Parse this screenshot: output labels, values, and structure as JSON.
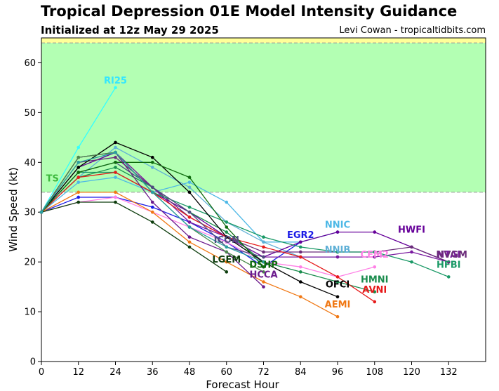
{
  "header": {
    "title": "Tropical Depression 01E Model Intensity Guidance",
    "subtitle": "Initialized at 12z May 29 2025",
    "credit": "Levi Cowan - tropicaltidbits.com"
  },
  "chart_data": {
    "type": "line",
    "title": "Tropical Depression 01E Model Intensity Guidance",
    "subtitle": "Initialized at 12z May 29 2025",
    "xlabel": "Forecast Hour",
    "ylabel": "Wind Speed (kt)",
    "xlim": [
      0,
      144
    ],
    "ylim": [
      0,
      65
    ],
    "xticks": [
      0,
      12,
      24,
      36,
      48,
      60,
      72,
      84,
      96,
      108,
      120,
      132
    ],
    "yticks": [
      0,
      10,
      20,
      30,
      40,
      50,
      60
    ],
    "bands": [
      {
        "label": "TS",
        "from": 34,
        "to": 64,
        "color": "#b3ffb3",
        "label_color": "#3cb83c"
      },
      {
        "label": "",
        "from": 64,
        "to": 65,
        "color": "#ffff99",
        "label_color": "#cccc00"
      }
    ],
    "series": [
      {
        "name": "RI25",
        "color": "#33ffff",
        "label_color": "#33e6ff",
        "label_at": [
          24,
          55
        ],
        "x": [
          0,
          12,
          24
        ],
        "y": [
          30,
          43,
          55
        ]
      },
      {
        "name": "NNIC",
        "color": "#4db8e6",
        "label_color": "#4db8e6",
        "label_at": [
          96,
          26
        ],
        "x": [
          0,
          12,
          24,
          36,
          48,
          60,
          72,
          84,
          96
        ],
        "y": [
          30,
          36,
          37,
          34,
          36,
          32,
          24,
          24,
          26
        ]
      },
      {
        "name": "NNIB",
        "color": "#5fb0d6",
        "label_color": "#5fb0d6",
        "label_at": [
          96,
          21
        ],
        "x": [
          0,
          12,
          24,
          36,
          48,
          60,
          72,
          84,
          96
        ],
        "y": [
          30,
          37,
          43,
          39,
          35,
          28,
          24,
          21,
          21
        ]
      },
      {
        "name": "EGR2",
        "color": "#1a1ae6",
        "label_color": "#1a1ae6",
        "label_at": [
          84,
          24
        ],
        "x": [
          0,
          12,
          24,
          36,
          48,
          60,
          72,
          84
        ],
        "y": [
          30,
          33,
          33,
          31,
          28,
          24,
          19,
          24
        ]
      },
      {
        "name": "HWFI",
        "color": "#660099",
        "label_color": "#660099",
        "label_at": [
          120,
          25
        ],
        "x": [
          0,
          12,
          24,
          36,
          48,
          60,
          72,
          84,
          96,
          108,
          120,
          132
        ],
        "y": [
          30,
          39,
          42,
          34,
          30,
          25,
          21,
          24,
          26,
          26,
          23,
          20
        ]
      },
      {
        "name": "CEM2",
        "color": "#ff80e6",
        "label_color": "#ff80e6",
        "label_at": [
          108,
          20
        ],
        "x": [
          0,
          12,
          24,
          36,
          48,
          60,
          72,
          84,
          96,
          108
        ],
        "y": [
          30,
          32,
          33,
          30,
          27,
          24,
          20,
          19,
          17,
          19
        ]
      },
      {
        "name": "NTAI",
        "color": "#7a1aa0",
        "label_color": "#7a1aa0",
        "label_at": [
          132,
          20
        ],
        "x": [
          0,
          12,
          24,
          36,
          48,
          60,
          72,
          84,
          96,
          108,
          120,
          132
        ],
        "y": [
          30,
          41,
          42,
          35,
          28,
          25,
          21,
          21,
          21,
          21,
          22,
          20
        ]
      },
      {
        "name": "NVGM",
        "color": "#6b2c7a",
        "label_color": "#6b2c7a",
        "label_at": [
          133,
          20
        ],
        "x": [
          0,
          12,
          24,
          36,
          48,
          60,
          72,
          84,
          96,
          108,
          120,
          132
        ],
        "y": [
          30,
          40,
          41,
          35,
          29,
          25,
          22,
          22,
          22,
          22,
          23,
          20
        ]
      },
      {
        "name": "HFBI",
        "color": "#1a9966",
        "label_color": "#1a9966",
        "label_at": [
          132,
          18
        ],
        "x": [
          0,
          12,
          24,
          36,
          48,
          60,
          72,
          84,
          96,
          108,
          120,
          132
        ],
        "y": [
          30,
          38,
          38,
          34,
          31,
          28,
          25,
          23,
          22,
          22,
          20,
          17
        ]
      },
      {
        "name": "HMNI",
        "color": "#1a8c4d",
        "label_color": "#1a8c4d",
        "label_at": [
          108,
          15
        ],
        "x": [
          0,
          12,
          24,
          36,
          48,
          60,
          72,
          84,
          96,
          108
        ],
        "y": [
          30,
          37,
          39,
          35,
          30,
          26,
          20,
          18,
          16,
          14
        ]
      },
      {
        "name": "AVNI",
        "color": "#e61a1a",
        "label_color": "#e61a1a",
        "label_at": [
          108,
          13
        ],
        "x": [
          0,
          12,
          24,
          36,
          48,
          60,
          72,
          84,
          96,
          108
        ],
        "y": [
          30,
          37,
          38,
          34,
          29,
          25,
          23,
          21,
          17,
          12
        ]
      },
      {
        "name": "OFCI",
        "color": "#000000",
        "label_color": "#000000",
        "label_at": [
          96,
          14
        ],
        "x": [
          0,
          12,
          24,
          36,
          48,
          60,
          72,
          84,
          96
        ],
        "y": [
          30,
          39,
          44,
          41,
          34,
          25,
          20,
          16,
          13
        ]
      },
      {
        "name": "AEMI",
        "color": "#f07814",
        "label_color": "#f07814",
        "label_at": [
          96,
          10
        ],
        "x": [
          0,
          12,
          24,
          36,
          48,
          60,
          72,
          84,
          96
        ],
        "y": [
          30,
          34,
          34,
          30,
          24,
          20,
          16,
          13,
          9
        ]
      },
      {
        "name": "ICON",
        "color": "#4d4d80",
        "label_color": "#4d4d80",
        "label_at": [
          60,
          23
        ],
        "x": [
          0,
          12,
          24,
          36,
          48,
          60,
          72
        ],
        "y": [
          30,
          38,
          40,
          35,
          30,
          23,
          21
        ]
      },
      {
        "name": "LGEM",
        "color": "#0d3d0d",
        "label_color": "#0d3d0d",
        "label_at": [
          60,
          19
        ],
        "x": [
          0,
          12,
          24,
          36,
          48,
          60
        ],
        "y": [
          30,
          32,
          32,
          28,
          23,
          18
        ]
      },
      {
        "name": "DSHP",
        "color": "#0d6b0d",
        "label_color": "#0d6b0d",
        "label_at": [
          72,
          18
        ],
        "x": [
          0,
          12,
          24,
          36,
          48,
          60,
          72
        ],
        "y": [
          30,
          38,
          40,
          40,
          37,
          27,
          19
        ]
      },
      {
        "name": "HCCA",
        "color": "#6b1a8c",
        "label_color": "#6b1a8c",
        "label_at": [
          72,
          16
        ],
        "x": [
          0,
          12,
          24,
          36,
          48,
          60,
          72
        ],
        "y": [
          30,
          41,
          42,
          32,
          25,
          22,
          15
        ]
      },
      {
        "name": "",
        "color": "#4a8a4a",
        "label_color": "#4a8a4a",
        "label_at": null,
        "x": [
          0,
          12,
          24,
          36,
          48,
          60,
          72
        ],
        "y": [
          30,
          41,
          42,
          34,
          27,
          22,
          18
        ]
      },
      {
        "name": "",
        "color": "#2aa0a0",
        "label_color": "#2aa0a0",
        "label_at": null,
        "x": [
          0,
          12,
          24,
          36,
          48,
          60,
          72
        ],
        "y": [
          30,
          40,
          42,
          34,
          27,
          23,
          20
        ]
      }
    ]
  }
}
